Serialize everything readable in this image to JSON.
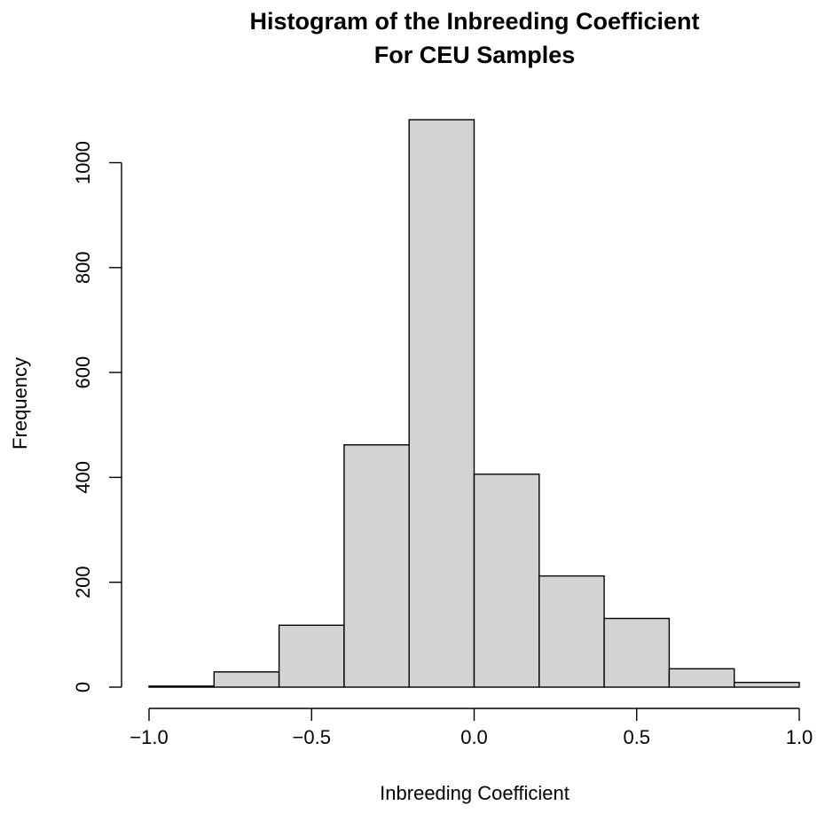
{
  "chart_data": {
    "type": "bar",
    "title_line1": "Histogram of the Inbreeding Coefficient",
    "title_line2": "For CEU Samples",
    "xlabel": "Inbreeding Coefficient",
    "ylabel": "Frequency",
    "bins": [
      {
        "from": -1.0,
        "to": -0.8,
        "count": 2
      },
      {
        "from": -0.8,
        "to": -0.6,
        "count": 29
      },
      {
        "from": -0.6,
        "to": -0.4,
        "count": 118
      },
      {
        "from": -0.4,
        "to": -0.2,
        "count": 462
      },
      {
        "from": -0.2,
        "to": 0.0,
        "count": 1082
      },
      {
        "from": 0.0,
        "to": 0.2,
        "count": 406
      },
      {
        "from": 0.2,
        "to": 0.4,
        "count": 212
      },
      {
        "from": 0.4,
        "to": 0.6,
        "count": 131
      },
      {
        "from": 0.6,
        "to": 0.8,
        "count": 35
      },
      {
        "from": 0.8,
        "to": 1.0,
        "count": 9
      }
    ],
    "xlim": [
      -1.0,
      1.0
    ],
    "ylim": [
      0,
      1082
    ],
    "x_ticks": [
      {
        "value": -1.0,
        "label": "−1.0"
      },
      {
        "value": -0.5,
        "label": "−0.5"
      },
      {
        "value": 0.0,
        "label": "0.0"
      },
      {
        "value": 0.5,
        "label": "0.5"
      },
      {
        "value": 1.0,
        "label": "1.0"
      }
    ],
    "y_ticks": [
      {
        "value": 0,
        "label": "0"
      },
      {
        "value": 200,
        "label": "200"
      },
      {
        "value": 400,
        "label": "400"
      },
      {
        "value": 600,
        "label": "600"
      },
      {
        "value": 800,
        "label": "800"
      },
      {
        "value": 1000,
        "label": "1000"
      }
    ],
    "bar_color": "#d3d3d3",
    "grid": false
  }
}
